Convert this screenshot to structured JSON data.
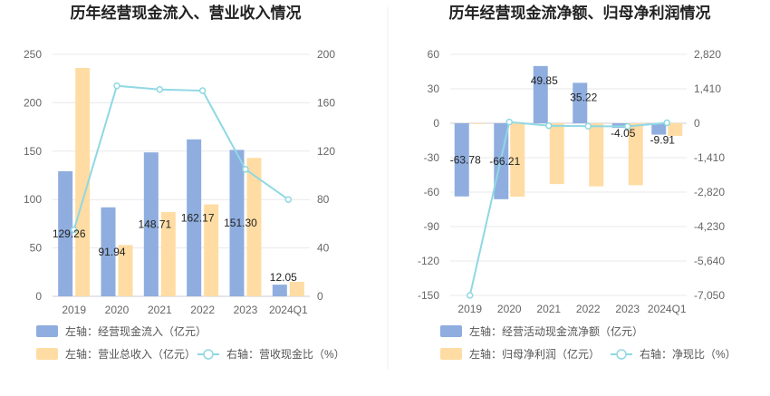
{
  "colors": {
    "bar_primary": "#8faedf",
    "bar_secondary": "#ffdca3",
    "line": "#8fd8e3",
    "grid": "#e9e9ee",
    "divider": "#ededed"
  },
  "chart_data": [
    {
      "type": "bar",
      "title": "历年经营现金流入、营业收入情况",
      "categories": [
        "2019",
        "2020",
        "2021",
        "2022",
        "2023",
        "2024Q1"
      ],
      "left_axis": {
        "ylim": [
          0,
          250
        ],
        "ticks": [
          "0",
          "50",
          "100",
          "150",
          "200",
          "250"
        ]
      },
      "right_axis": {
        "ylim": [
          0,
          200
        ],
        "ticks": [
          "0",
          "40",
          "80",
          "120",
          "160",
          "200"
        ]
      },
      "grid": true,
      "legend_position": "bottom",
      "series": [
        {
          "name": "左轴：经营现金流入（亿元）",
          "kind": "bar",
          "axis": "left",
          "values": [
            129.26,
            91.94,
            148.71,
            162.17,
            151.3,
            12.05
          ],
          "labels": [
            "129.26",
            "91.94",
            "148.71",
            "162.17",
            "151.30",
            "12.05"
          ]
        },
        {
          "name": "左轴：营业总收入（亿元）",
          "kind": "bar",
          "axis": "left",
          "values": [
            236,
            53,
            87,
            95,
            143,
            15
          ]
        },
        {
          "name": "右轴：营收现金比（%）",
          "kind": "line",
          "axis": "right",
          "values": [
            55,
            174,
            171,
            170,
            105,
            80
          ]
        }
      ]
    },
    {
      "type": "bar",
      "title": "历年经营现金流净额、归母净利润情况",
      "categories": [
        "2019",
        "2020",
        "2021",
        "2022",
        "2023",
        "2024Q1"
      ],
      "left_axis": {
        "ylim": [
          -150,
          60
        ],
        "ticks": [
          "-150",
          "-120",
          "-90",
          "-60",
          "-30",
          "0",
          "30",
          "60"
        ]
      },
      "right_axis": {
        "ylim": [
          -7050,
          2820
        ],
        "ticks": [
          "-7,050",
          "-5,640",
          "-4,230",
          "-2,820",
          "-1,410",
          "0",
          "1,410",
          "2,820"
        ]
      },
      "grid": true,
      "legend_position": "bottom",
      "series": [
        {
          "name": "左轴：经营活动现金流净额（亿元）",
          "kind": "bar",
          "axis": "left",
          "values": [
            -63.78,
            -66.21,
            49.85,
            35.22,
            -4.05,
            -9.91
          ],
          "labels": [
            "-63.78",
            "-66.21",
            "49.85",
            "35.22",
            "-4.05",
            "-9.91"
          ]
        },
        {
          "name": "左轴：归母净利润（亿元）",
          "kind": "bar",
          "axis": "left",
          "values": [
            -0.5,
            -64,
            -53,
            -55,
            -54,
            -11
          ]
        },
        {
          "name": "右轴：净现比（%）",
          "kind": "line",
          "axis": "right",
          "values": [
            -7050,
            50,
            -100,
            -120,
            -130,
            20
          ]
        }
      ]
    }
  ]
}
